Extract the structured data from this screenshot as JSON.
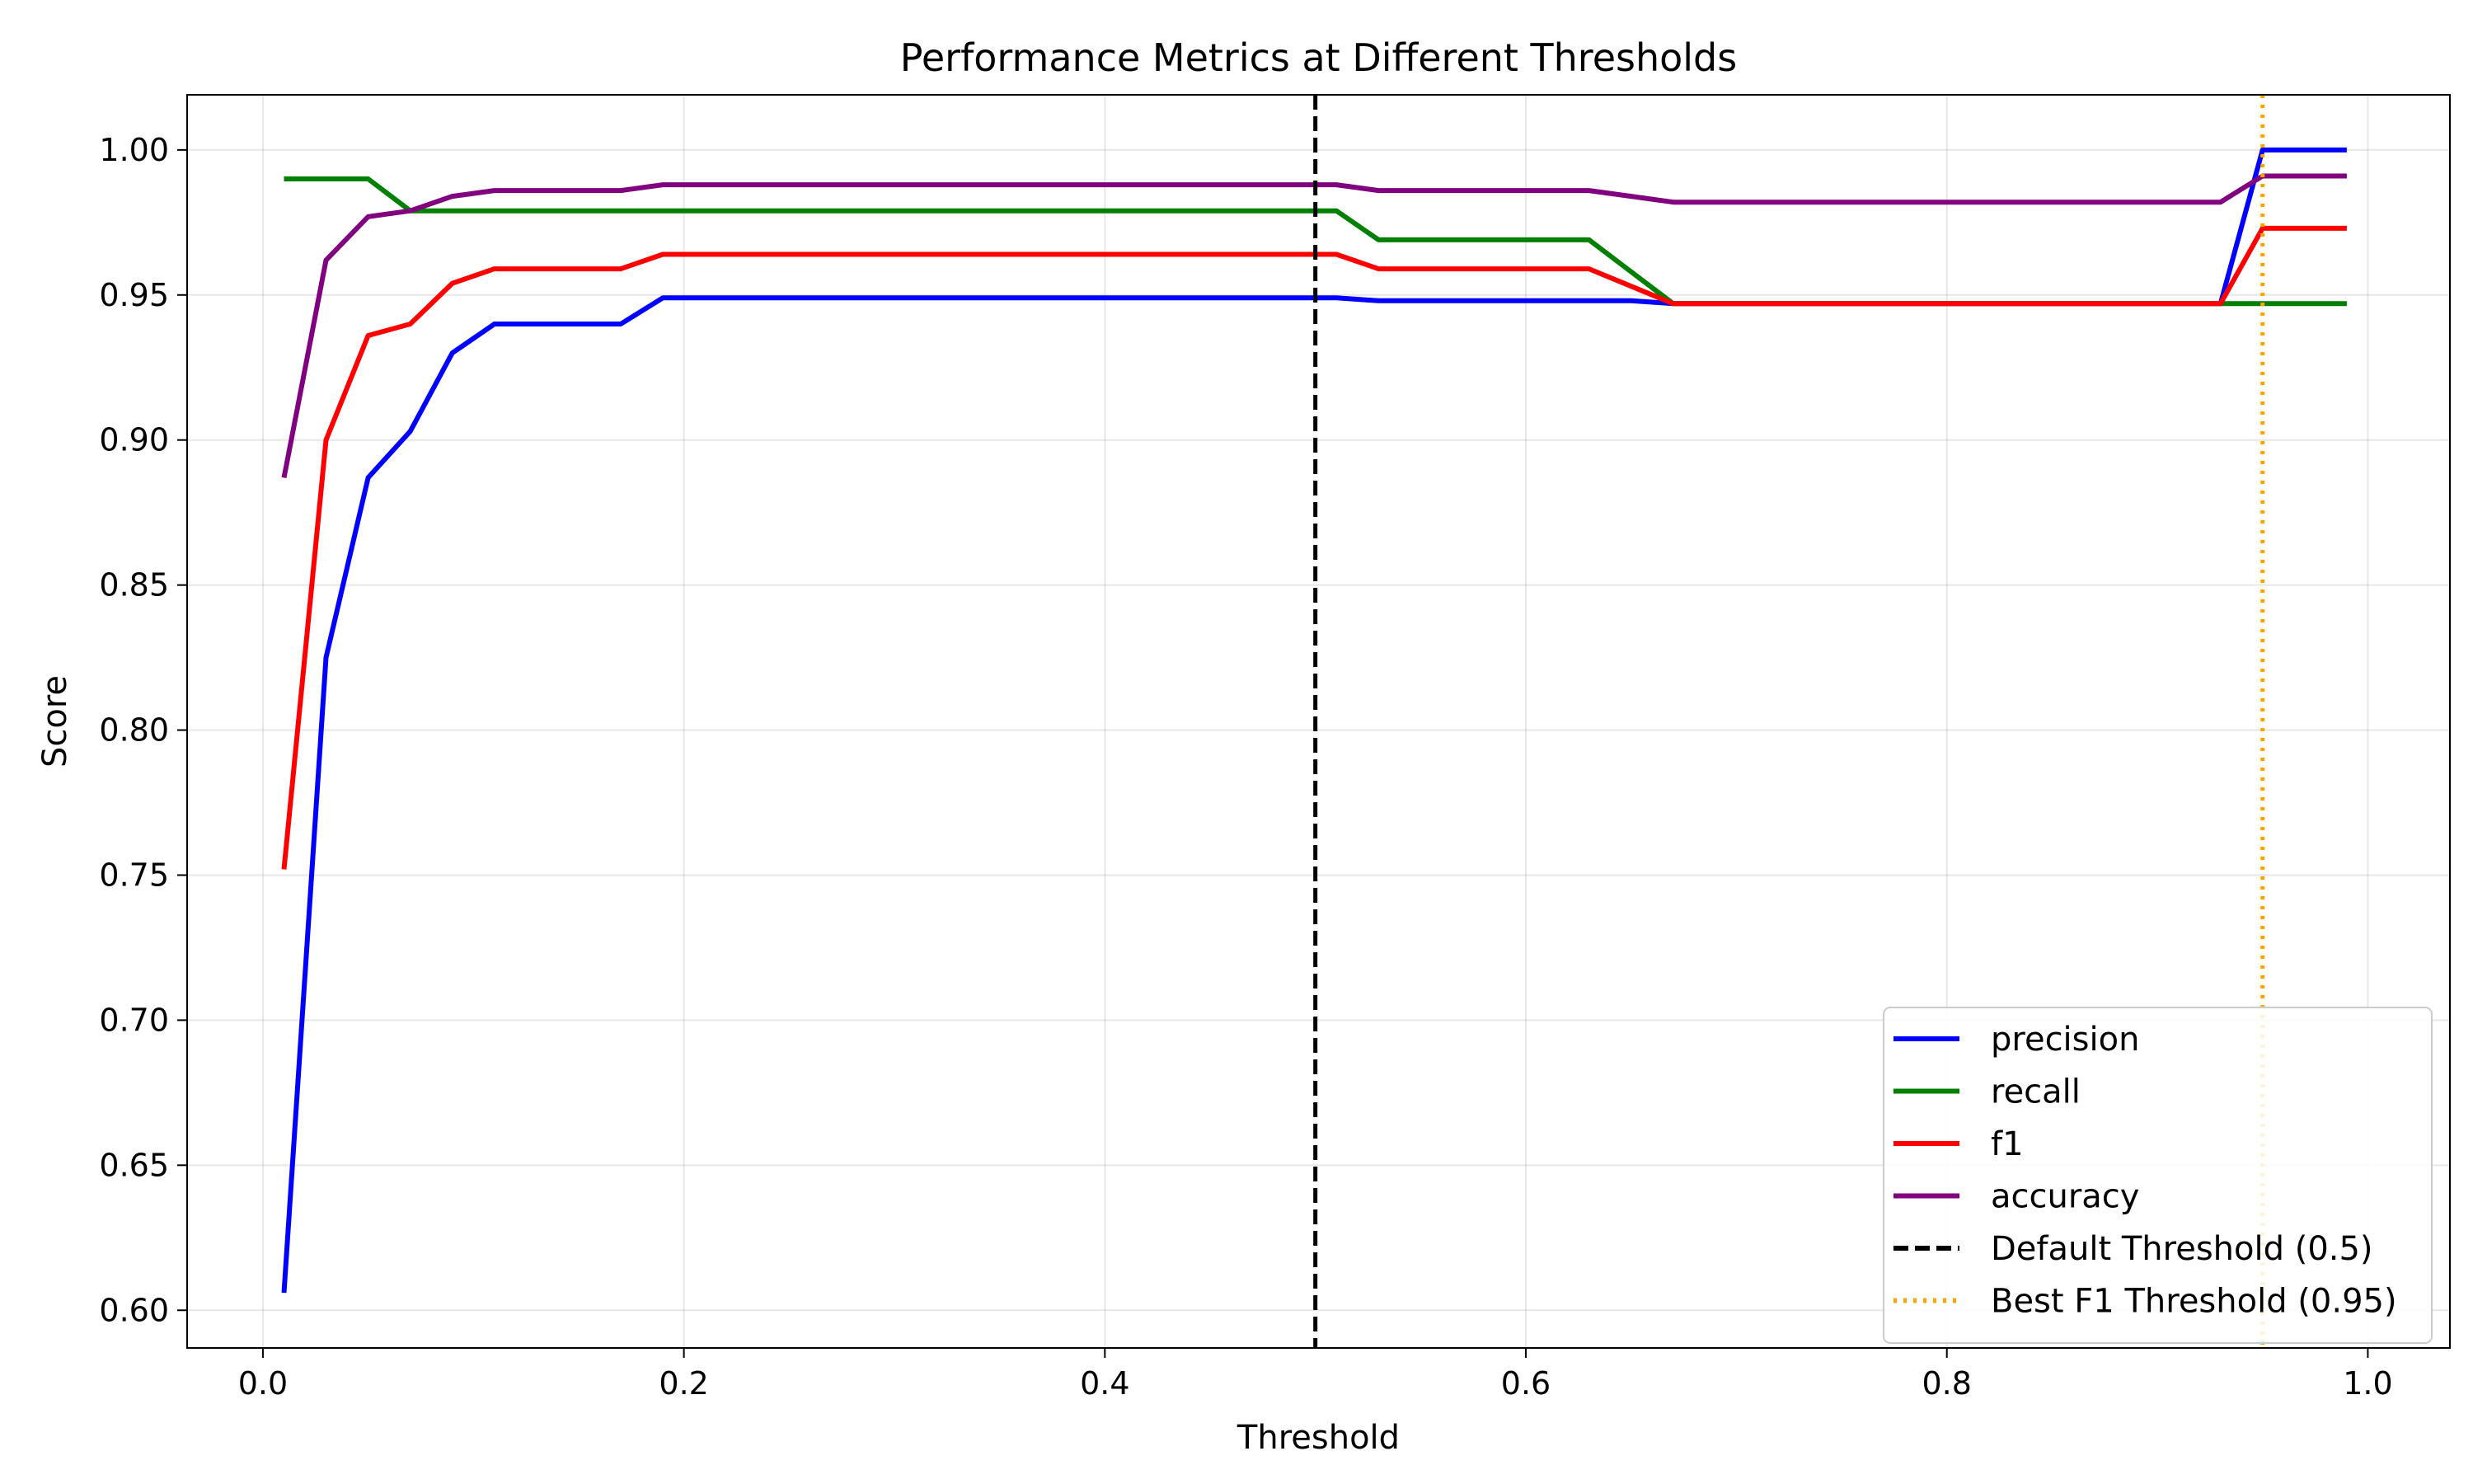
{
  "chart_data": {
    "type": "line",
    "title": "Performance Metrics at Different Thresholds",
    "xlabel": "Threshold",
    "ylabel": "Score",
    "xlim": [
      -0.036,
      1.039
    ],
    "ylim": [
      0.587,
      1.019
    ],
    "grid": true,
    "legend_position": "lower-right",
    "x_ticks": [
      0.0,
      0.2,
      0.4,
      0.6,
      0.8,
      1.0
    ],
    "x_tick_labels": [
      "0.0",
      "0.2",
      "0.4",
      "0.6",
      "0.8",
      "1.0"
    ],
    "y_ticks": [
      0.6,
      0.65,
      0.7,
      0.75,
      0.8,
      0.85,
      0.9,
      0.95,
      1.0
    ],
    "y_tick_labels": [
      "0.60",
      "0.65",
      "0.70",
      "0.75",
      "0.80",
      "0.85",
      "0.90",
      "0.95",
      "1.00"
    ],
    "x": [
      0.01,
      0.03,
      0.05,
      0.07,
      0.09,
      0.11,
      0.13,
      0.15,
      0.17,
      0.19,
      0.21,
      0.23,
      0.25,
      0.27,
      0.29,
      0.31,
      0.33,
      0.35,
      0.37,
      0.39,
      0.41,
      0.43,
      0.45,
      0.47,
      0.49,
      0.51,
      0.53,
      0.55,
      0.57,
      0.59,
      0.61,
      0.63,
      0.65,
      0.67,
      0.69,
      0.71,
      0.73,
      0.75,
      0.77,
      0.79,
      0.81,
      0.83,
      0.85,
      0.87,
      0.89,
      0.91,
      0.93,
      0.95,
      0.97,
      0.99
    ],
    "series": [
      {
        "name": "precision",
        "color": "#0000ff",
        "style": "solid",
        "values": [
          0.606,
          0.825,
          0.887,
          0.903,
          0.93,
          0.94,
          0.94,
          0.94,
          0.94,
          0.949,
          0.949,
          0.949,
          0.949,
          0.949,
          0.949,
          0.949,
          0.949,
          0.949,
          0.949,
          0.949,
          0.949,
          0.949,
          0.949,
          0.949,
          0.949,
          0.949,
          0.948,
          0.948,
          0.948,
          0.948,
          0.948,
          0.948,
          0.948,
          0.947,
          0.947,
          0.947,
          0.947,
          0.947,
          0.947,
          0.947,
          0.947,
          0.947,
          0.947,
          0.947,
          0.947,
          0.947,
          0.947,
          1.0,
          1.0,
          1.0
        ]
      },
      {
        "name": "recall",
        "color": "#008000",
        "style": "solid",
        "values": [
          0.99,
          0.99,
          0.99,
          0.979,
          0.979,
          0.979,
          0.979,
          0.979,
          0.979,
          0.979,
          0.979,
          0.979,
          0.979,
          0.979,
          0.979,
          0.979,
          0.979,
          0.979,
          0.979,
          0.979,
          0.979,
          0.979,
          0.979,
          0.979,
          0.979,
          0.979,
          0.969,
          0.969,
          0.969,
          0.969,
          0.969,
          0.969,
          0.958,
          0.947,
          0.947,
          0.947,
          0.947,
          0.947,
          0.947,
          0.947,
          0.947,
          0.947,
          0.947,
          0.947,
          0.947,
          0.947,
          0.947,
          0.947,
          0.947,
          0.947
        ]
      },
      {
        "name": "f1",
        "color": "#ff0000",
        "style": "solid",
        "values": [
          0.752,
          0.9,
          0.936,
          0.94,
          0.954,
          0.959,
          0.959,
          0.959,
          0.959,
          0.964,
          0.964,
          0.964,
          0.964,
          0.964,
          0.964,
          0.964,
          0.964,
          0.964,
          0.964,
          0.964,
          0.964,
          0.964,
          0.964,
          0.964,
          0.964,
          0.964,
          0.959,
          0.959,
          0.959,
          0.959,
          0.959,
          0.959,
          0.953,
          0.947,
          0.947,
          0.947,
          0.947,
          0.947,
          0.947,
          0.947,
          0.947,
          0.947,
          0.947,
          0.947,
          0.947,
          0.947,
          0.947,
          0.973,
          0.973,
          0.973
        ]
      },
      {
        "name": "accuracy",
        "color": "#800080",
        "style": "solid",
        "values": [
          0.887,
          0.962,
          0.977,
          0.979,
          0.984,
          0.986,
          0.986,
          0.986,
          0.986,
          0.988,
          0.988,
          0.988,
          0.988,
          0.988,
          0.988,
          0.988,
          0.988,
          0.988,
          0.988,
          0.988,
          0.988,
          0.988,
          0.988,
          0.988,
          0.988,
          0.988,
          0.986,
          0.986,
          0.986,
          0.986,
          0.986,
          0.986,
          0.984,
          0.982,
          0.982,
          0.982,
          0.982,
          0.982,
          0.982,
          0.982,
          0.982,
          0.982,
          0.982,
          0.982,
          0.982,
          0.982,
          0.982,
          0.991,
          0.991,
          0.991
        ]
      }
    ],
    "reference_lines": [
      {
        "name": "Default Threshold (0.5)",
        "x": 0.5,
        "color": "#000000",
        "style": "dashed"
      },
      {
        "name": "Best F1 Threshold (0.95)",
        "x": 0.95,
        "color": "#ffa500",
        "style": "dotted"
      }
    ]
  }
}
